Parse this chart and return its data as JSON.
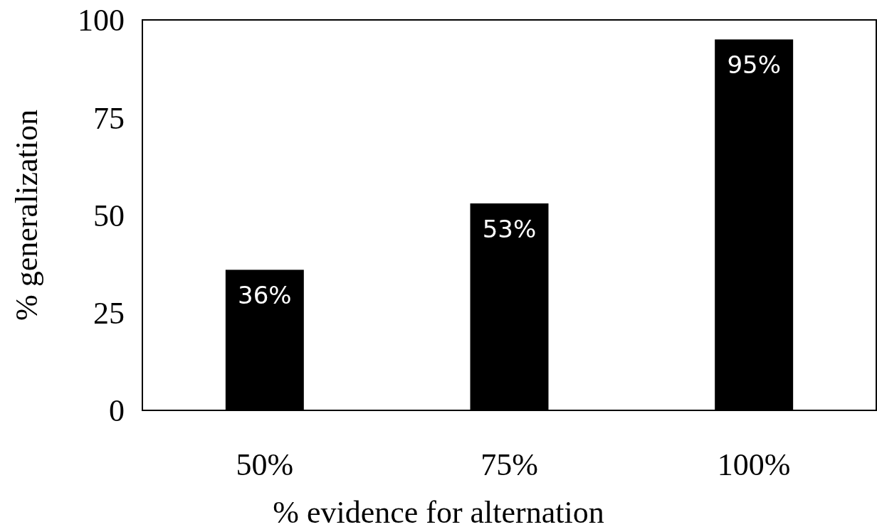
{
  "chart_data": {
    "type": "bar",
    "xlabel": "% evidence for alternation",
    "ylabel": "% generalization",
    "categories": [
      "50%",
      "75%",
      "100%"
    ],
    "values": [
      36,
      53,
      95
    ],
    "value_labels": [
      "36%",
      "53%",
      "95%"
    ],
    "color": "#000000",
    "ylim": [
      0,
      100
    ],
    "yticks": [
      0,
      25,
      50,
      75,
      100
    ]
  }
}
